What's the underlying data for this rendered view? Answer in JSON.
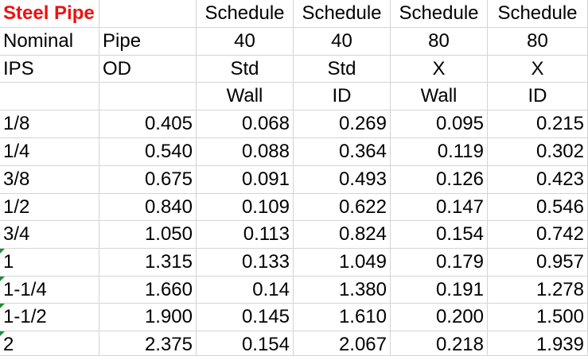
{
  "colors": {
    "title": "#ee1111",
    "gridline": "#d4d4d4",
    "text": "#000000",
    "error_indicator": "#1e8f3a"
  },
  "header_rows": [
    [
      "Steel Pipe",
      "",
      "Schedule",
      "Schedule",
      "Schedule",
      "Schedule"
    ],
    [
      "Nominal",
      "Pipe",
      "40",
      "40",
      "80",
      "80"
    ],
    [
      "IPS",
      "OD",
      "Std",
      "Std",
      "X",
      "X"
    ],
    [
      "",
      "",
      "Wall",
      "ID",
      "Wall",
      "ID"
    ]
  ],
  "rows": [
    {
      "ips": "1/8",
      "od": "0.405",
      "std_wall": "0.068",
      "std_id": "0.269",
      "x_wall": "0.095",
      "x_id": "0.215",
      "indicator": false
    },
    {
      "ips": "1/4",
      "od": "0.540",
      "std_wall": "0.088",
      "std_id": "0.364",
      "x_wall": "0.119",
      "x_id": "0.302",
      "indicator": false
    },
    {
      "ips": "3/8",
      "od": "0.675",
      "std_wall": "0.091",
      "std_id": "0.493",
      "x_wall": "0.126",
      "x_id": "0.423",
      "indicator": false
    },
    {
      "ips": "1/2",
      "od": "0.840",
      "std_wall": "0.109",
      "std_id": "0.622",
      "x_wall": "0.147",
      "x_id": "0.546",
      "indicator": false
    },
    {
      "ips": "3/4",
      "od": "1.050",
      "std_wall": "0.113",
      "std_id": "0.824",
      "x_wall": "0.154",
      "x_id": "0.742",
      "indicator": false
    },
    {
      "ips": "1",
      "od": "1.315",
      "std_wall": "0.133",
      "std_id": "1.049",
      "x_wall": "0.179",
      "x_id": "0.957",
      "indicator": true
    },
    {
      "ips": "1-1/4",
      "od": "1.660",
      "std_wall": "0.14",
      "std_id": "1.380",
      "x_wall": "0.191",
      "x_id": "1.278",
      "indicator": true
    },
    {
      "ips": "1-1/2",
      "od": "1.900",
      "std_wall": "0.145",
      "std_id": "1.610",
      "x_wall": "0.200",
      "x_id": "1.500",
      "indicator": true
    },
    {
      "ips": "2",
      "od": "2.375",
      "std_wall": "0.154",
      "std_id": "2.067",
      "x_wall": "0.218",
      "x_id": "1.939",
      "indicator": true
    }
  ]
}
